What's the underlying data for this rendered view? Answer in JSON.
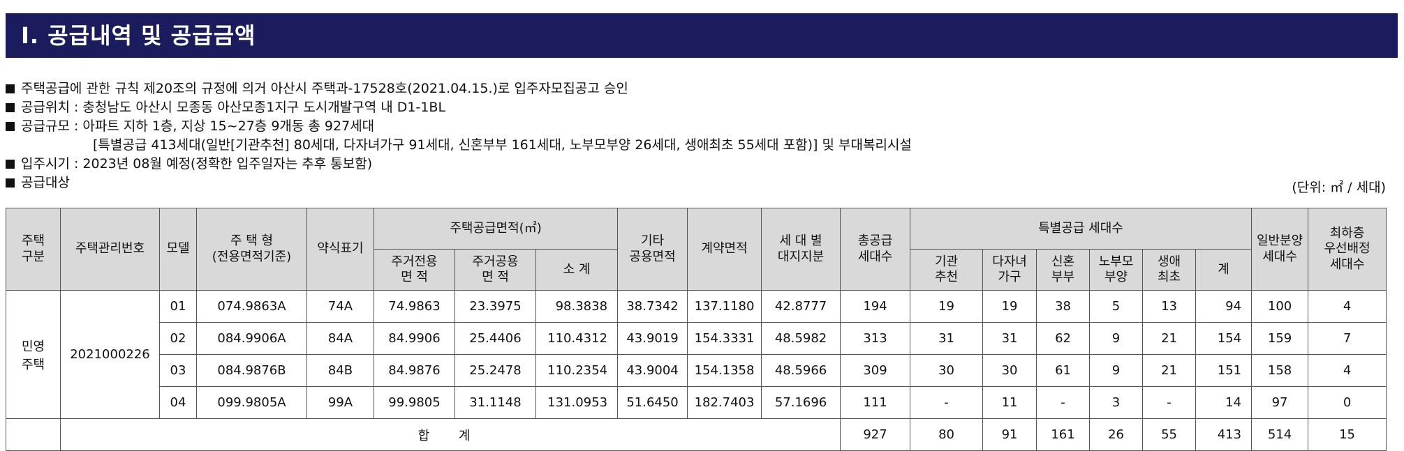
{
  "section_title": "Ⅰ. 공급내역 및 공급금액",
  "bullets": [
    "주택공급에 관한 규칙 제20조의 규정에 의거 아산시 주택과-17528호(2021.04.15.)로 입주자모집공고 승인",
    "공급위치 : 충청남도 아산시 모종동 아산모종1지구 도시개발구역 내 D1-1BL",
    "공급규모 : 아파트 지하 1층, 지상 15~27층 9개동 총 927세대",
    "[특별공급 413세대(일반[기관추천] 80세대, 다자녀가구 91세대, 신혼부부 161세대, 노부모부양 26세대, 생애최초 55세대 포함)] 및 부대복리시설",
    "입주시기 : 2023년 08월 예정(정확한 입주일자는 추후 통보함)",
    "공급대상"
  ],
  "unit_note": "(단위: ㎡ / 세대)",
  "headers": {
    "housing_type": "주택\n구분",
    "mgmt_no": "주택관리번호",
    "model": "모델",
    "house_type": "주 택 형\n(전용면적기준)",
    "short_label": "약식표기",
    "supply_area": "주택공급면적(㎡)",
    "exclusive": "주거전용\n면 적",
    "common": "주거공용\n면 적",
    "subtotal": "소 계",
    "other_common": "기타\n공용면적",
    "contract_area": "계약면적",
    "land_share": "세 대 별\n대지지분",
    "total_supply": "총공급\n세대수",
    "special_supply": "특별공급 세대수",
    "sp_agency": "기관\n추천",
    "sp_multichild": "다자녀\n가구",
    "sp_newlywed": "신혼\n부부",
    "sp_elderly": "노부모\n부양",
    "sp_firsttime": "생애\n최초",
    "sp_total": "계",
    "general_supply": "일반분양\n세대수",
    "lowest_floor": "최하층\n우선배정\n세대수"
  },
  "housing_type_value": "민영\n주택",
  "mgmt_no_value": "2021000226",
  "rows": [
    {
      "model": "01",
      "type": "074.9863A",
      "short": "74A",
      "exclusive": "74.9863",
      "common": "23.3975",
      "subtotal": "98.3838",
      "other": "38.7342",
      "contract": "137.1180",
      "land": "42.8777",
      "total": "194",
      "agency": "19",
      "multichild": "19",
      "newlywed": "38",
      "elderly": "5",
      "firsttime": "13",
      "sp_total": "94",
      "general": "100",
      "lowest": "4"
    },
    {
      "model": "02",
      "type": "084.9906A",
      "short": "84A",
      "exclusive": "84.9906",
      "common": "25.4406",
      "subtotal": "110.4312",
      "other": "43.9019",
      "contract": "154.3331",
      "land": "48.5982",
      "total": "313",
      "agency": "31",
      "multichild": "31",
      "newlywed": "62",
      "elderly": "9",
      "firsttime": "21",
      "sp_total": "154",
      "general": "159",
      "lowest": "7"
    },
    {
      "model": "03",
      "type": "084.9876B",
      "short": "84B",
      "exclusive": "84.9876",
      "common": "25.2478",
      "subtotal": "110.2354",
      "other": "43.9004",
      "contract": "154.1358",
      "land": "48.5966",
      "total": "309",
      "agency": "30",
      "multichild": "30",
      "newlywed": "61",
      "elderly": "9",
      "firsttime": "21",
      "sp_total": "151",
      "general": "158",
      "lowest": "4"
    },
    {
      "model": "04",
      "type": "099.9805A",
      "short": "99A",
      "exclusive": "99.9805",
      "common": "31.1148",
      "subtotal": "131.0953",
      "other": "51.6450",
      "contract": "182.7403",
      "land": "57.1696",
      "total": "111",
      "agency": "-",
      "multichild": "11",
      "newlywed": "-",
      "elderly": "3",
      "firsttime": "-",
      "sp_total": "14",
      "general": "97",
      "lowest": "0"
    }
  ],
  "totals": {
    "label": "합 계",
    "total": "927",
    "agency": "80",
    "multichild": "91",
    "newlywed": "161",
    "elderly": "26",
    "firsttime": "55",
    "sp_total": "413",
    "general": "514",
    "lowest": "15"
  }
}
